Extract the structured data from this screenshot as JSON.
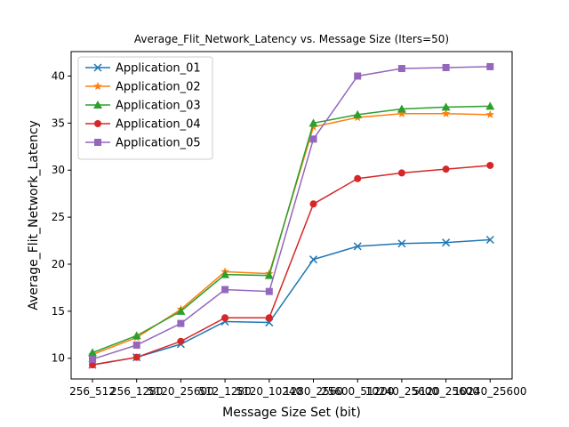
{
  "chart_data": {
    "type": "line",
    "title": "Average_Flit_Network_Latency vs. Message Size (Iters=50)",
    "xlabel": "Message Size Set (bit)",
    "ylabel": "Average_Flit_Network_Latency",
    "x_tick_labels": [
      "256_512",
      "256_1280",
      "5120_25600",
      "512_1280",
      "5120_10240",
      "1280_2560",
      "25600_51200",
      "10240_25600",
      "5120_25600",
      "10240_25600"
    ],
    "categories": [
      "256_512",
      "256_1280",
      "5120_25600",
      "512_1280",
      "5120_10240",
      "1280_2560",
      "25600_51200",
      "10240_25600",
      "5120_25600",
      "10240_25600"
    ],
    "yticks": [
      10,
      15,
      20,
      25,
      30,
      35,
      40
    ],
    "ylim": [
      7.8,
      42.6
    ],
    "grid": false,
    "legend_position": "top-left",
    "series": [
      {
        "name": "Application_01",
        "color": "#1f77b4",
        "marker": "x",
        "values": [
          9.3,
          10.1,
          11.5,
          13.9,
          13.8,
          20.5,
          21.9,
          22.2,
          22.3,
          22.6
        ]
      },
      {
        "name": "Application_02",
        "color": "#ff7f0e",
        "marker": "star",
        "values": [
          10.4,
          12.2,
          15.2,
          19.2,
          19.0,
          34.6,
          35.6,
          36.0,
          36.0,
          35.9
        ]
      },
      {
        "name": "Application_03",
        "color": "#2ca02c",
        "marker": "triangle",
        "values": [
          10.6,
          12.4,
          15.0,
          18.9,
          18.8,
          35.0,
          35.9,
          36.5,
          36.7,
          36.8
        ]
      },
      {
        "name": "Application_04",
        "color": "#d62728",
        "marker": "circle",
        "values": [
          9.3,
          10.1,
          11.8,
          14.3,
          14.3,
          26.4,
          29.1,
          29.7,
          30.1,
          30.5
        ]
      },
      {
        "name": "Application_05",
        "color": "#9467bd",
        "marker": "square",
        "values": [
          9.9,
          11.4,
          13.7,
          17.3,
          17.1,
          33.3,
          40.0,
          40.8,
          40.9,
          41.0
        ]
      }
    ]
  }
}
